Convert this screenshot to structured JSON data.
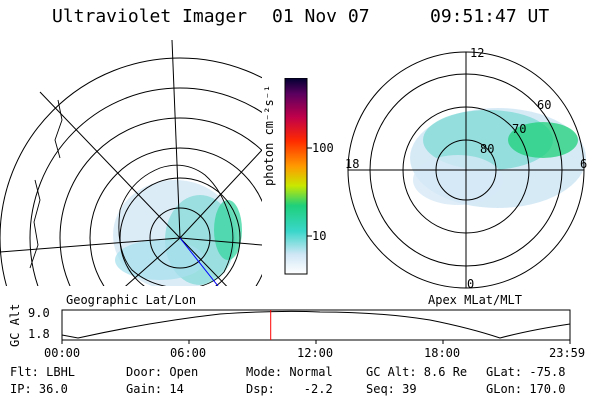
{
  "header": {
    "instrument": "Ultraviolet Imager",
    "date": "01 Nov 07",
    "time": "09:51:47 UT"
  },
  "colorbar": {
    "unit_label": "photon cm⁻²s⁻¹",
    "tick_labels": [
      "100",
      "10"
    ],
    "tick_values": [
      100,
      10
    ]
  },
  "geo_panel": {
    "caption": "Geographic Lat/Lon"
  },
  "apex_panel": {
    "caption": "Apex MLat/MLT",
    "mlt_labels": [
      "12",
      "18",
      "6",
      "0"
    ],
    "mlat_labels": [
      "60",
      "70",
      "80"
    ]
  },
  "altitude_plot": {
    "ylabel": "GC Alt",
    "yticks": [
      "9.0",
      "1.8"
    ],
    "xticks": [
      "00:00",
      "06:00",
      "12:00",
      "18:00",
      "23:59"
    ],
    "cursor_time_hours": 9.86
  },
  "info": {
    "row1": [
      "Flt: LBHL",
      "Door: Open",
      "Mode: Normal",
      "GC Alt: 8.6 Re",
      "GLat: -75.8"
    ],
    "row2": [
      "IP: 36.0",
      "Gain: 14",
      "Dsp:    -2.2",
      "Seq: 39",
      "GLon: 170.0"
    ]
  },
  "colors": {
    "cursor": "#ff0000",
    "path": "#0000ff",
    "emission_low": "#cfe6f5",
    "emission_mid": "#38d6c9",
    "emission_high": "#1fd07a"
  }
}
